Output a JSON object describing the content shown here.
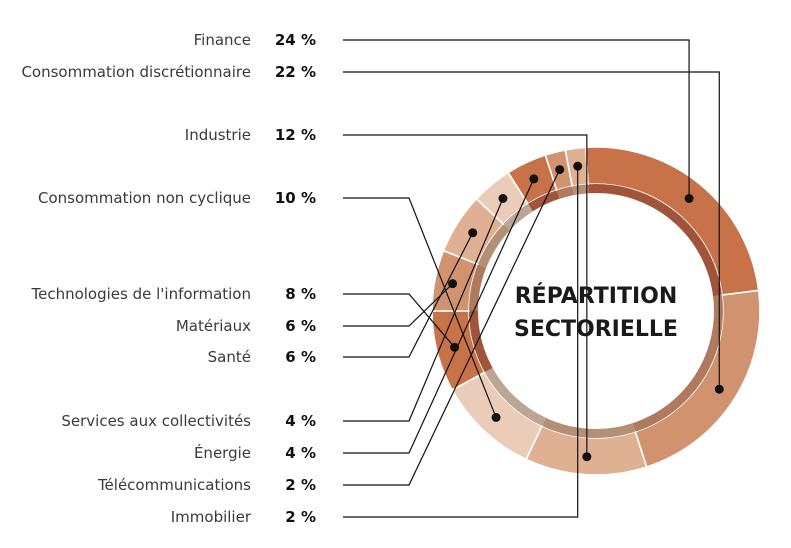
{
  "chart_data": {
    "type": "pie",
    "title": "RÉPARTITION SECTORIELLE",
    "title_lines": [
      "RÉPARTITION",
      "SECTORIELLE"
    ],
    "unit": "%",
    "slices": [
      {
        "label": "Finance",
        "value": 24,
        "display": "24 %",
        "color": "#C8724A",
        "inner_color": "#A0553A"
      },
      {
        "label": "Consommation discrétionnaire",
        "value": 22,
        "display": "22 %",
        "color": "#D19270",
        "inner_color": "#AF7A5E"
      },
      {
        "label": "Industrie",
        "value": 12,
        "display": "12 %",
        "color": "#DFB092",
        "inner_color": "#B48F75"
      },
      {
        "label": "Consommation non cyclique",
        "value": 10,
        "display": "10 %",
        "color": "#EBCCB8",
        "inner_color": "#BDA596"
      },
      {
        "label": "Technologies de l'information",
        "value": 8,
        "display": "8 %",
        "color": "#C8724A",
        "inner_color": "#A0553A"
      },
      {
        "label": "Matériaux",
        "value": 6,
        "display": "6 %",
        "color": "#D19270",
        "inner_color": "#AF7A5E"
      },
      {
        "label": "Santé",
        "value": 6,
        "display": "6 %",
        "color": "#DFB092",
        "inner_color": "#B48F75"
      },
      {
        "label": "Services aux collectivités",
        "value": 4,
        "display": "4 %",
        "color": "#EBCCB8",
        "inner_color": "#BDA596"
      },
      {
        "label": "Énergie",
        "value": 4,
        "display": "4 %",
        "color": "#C8724A",
        "inner_color": "#A0553A"
      },
      {
        "label": "Télécommunications",
        "value": 2,
        "display": "2 %",
        "color": "#D19270",
        "inner_color": "#AF7A5E"
      },
      {
        "label": "Immobilier",
        "value": 2,
        "display": "2 %",
        "color": "#DFB092",
        "inner_color": "#B48F75"
      }
    ]
  }
}
